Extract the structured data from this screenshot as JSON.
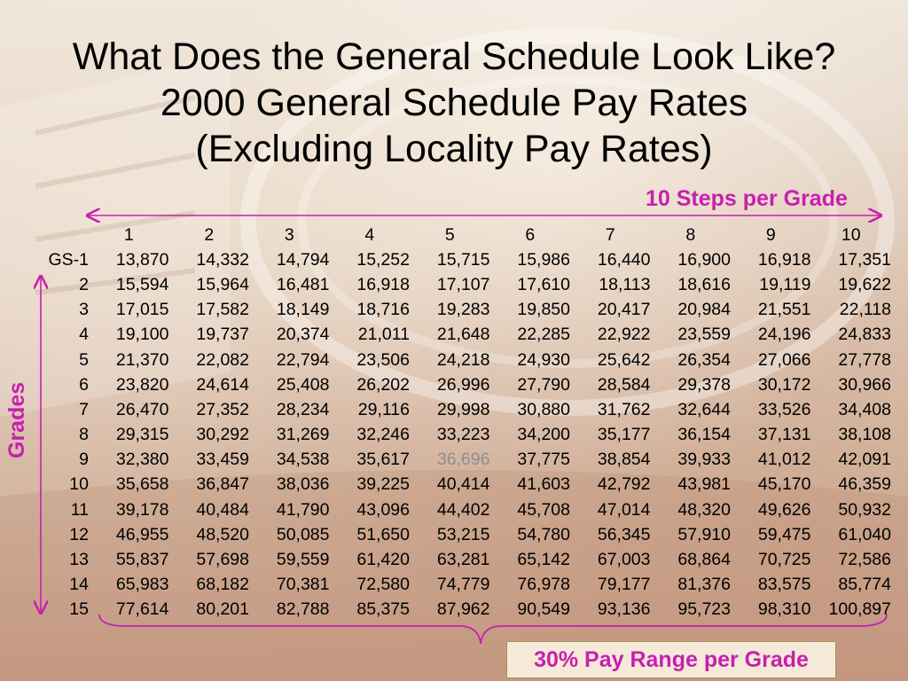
{
  "title_lines": [
    "What Does the General Schedule Look Like?",
    "2000 General Schedule Pay Rates",
    "(Excluding Locality Pay Rates)"
  ],
  "annotations": {
    "steps": "10 Steps per Grade",
    "grades": "Grades",
    "range": "30% Pay Range per Grade"
  },
  "colors": {
    "accent": "#c81fb0",
    "highlight_value": "#8e8e8e"
  },
  "table": {
    "headers": [
      "1",
      "2",
      "3",
      "4",
      "5",
      "6",
      "7",
      "8",
      "9",
      "10"
    ],
    "rows": [
      {
        "grade": "GS-1",
        "values": [
          "13,870",
          "14,332",
          "14,794",
          "15,252",
          "15,715",
          "15,986",
          "16,440",
          "16,900",
          "16,918",
          "17,351"
        ]
      },
      {
        "grade": "2",
        "values": [
          "15,594",
          "15,964",
          "16,481",
          "16,918",
          "17,107",
          "17,610",
          "18,113",
          "18,616",
          "19,119",
          "19,622"
        ]
      },
      {
        "grade": "3",
        "values": [
          "17,015",
          "17,582",
          "18,149",
          "18,716",
          "19,283",
          "19,850",
          "20,417",
          "20,984",
          "21,551",
          "22,118"
        ]
      },
      {
        "grade": "4",
        "values": [
          "19,100",
          "19,737",
          "20,374",
          "21,011",
          "21,648",
          "22,285",
          "22,922",
          "23,559",
          "24,196",
          "24,833"
        ]
      },
      {
        "grade": "5",
        "values": [
          "21,370",
          "22,082",
          "22,794",
          "23,506",
          "24,218",
          "24,930",
          "25,642",
          "26,354",
          "27,066",
          "27,778"
        ]
      },
      {
        "grade": "6",
        "values": [
          "23,820",
          "24,614",
          "25,408",
          "26,202",
          "26,996",
          "27,790",
          "28,584",
          "29,378",
          "30,172",
          "30,966"
        ]
      },
      {
        "grade": "7",
        "values": [
          "26,470",
          "27,352",
          "28,234",
          "29,116",
          "29,998",
          "30,880",
          "31,762",
          "32,644",
          "33,526",
          "34,408"
        ]
      },
      {
        "grade": "8",
        "values": [
          "29,315",
          "30,292",
          "31,269",
          "32,246",
          "33,223",
          "34,200",
          "35,177",
          "36,154",
          "37,131",
          "38,108"
        ]
      },
      {
        "grade": "9",
        "values": [
          "32,380",
          "33,459",
          "34,538",
          "35,617",
          "36,696",
          "37,775",
          "38,854",
          "39,933",
          "41,012",
          "42,091"
        ]
      },
      {
        "grade": "10",
        "values": [
          "35,658",
          "36,847",
          "38,036",
          "39,225",
          "40,414",
          "41,603",
          "42,792",
          "43,981",
          "45,170",
          "46,359"
        ]
      },
      {
        "grade": "11",
        "values": [
          "39,178",
          "40,484",
          "41,790",
          "43,096",
          "44,402",
          "45,708",
          "47,014",
          "48,320",
          "49,626",
          "50,932"
        ]
      },
      {
        "grade": "12",
        "values": [
          "46,955",
          "48,520",
          "50,085",
          "51,650",
          "53,215",
          "54,780",
          "56,345",
          "57,910",
          "59,475",
          "61,040"
        ]
      },
      {
        "grade": "13",
        "values": [
          "55,837",
          "57,698",
          "59,559",
          "61,420",
          "63,281",
          "65,142",
          "67,003",
          "68,864",
          "70,725",
          "72,586"
        ]
      },
      {
        "grade": "14",
        "values": [
          "65,983",
          "68,182",
          "70,381",
          "72,580",
          "74,779",
          "76,978",
          "79,177",
          "81,376",
          "83,575",
          "85,774"
        ]
      },
      {
        "grade": "15",
        "values": [
          "77,614",
          "80,201",
          "82,788",
          "85,375",
          "87,962",
          "90,549",
          "93,136",
          "95,723",
          "98,310",
          "100,897"
        ]
      }
    ],
    "highlighted_cell": {
      "row": 8,
      "col": 4
    }
  }
}
